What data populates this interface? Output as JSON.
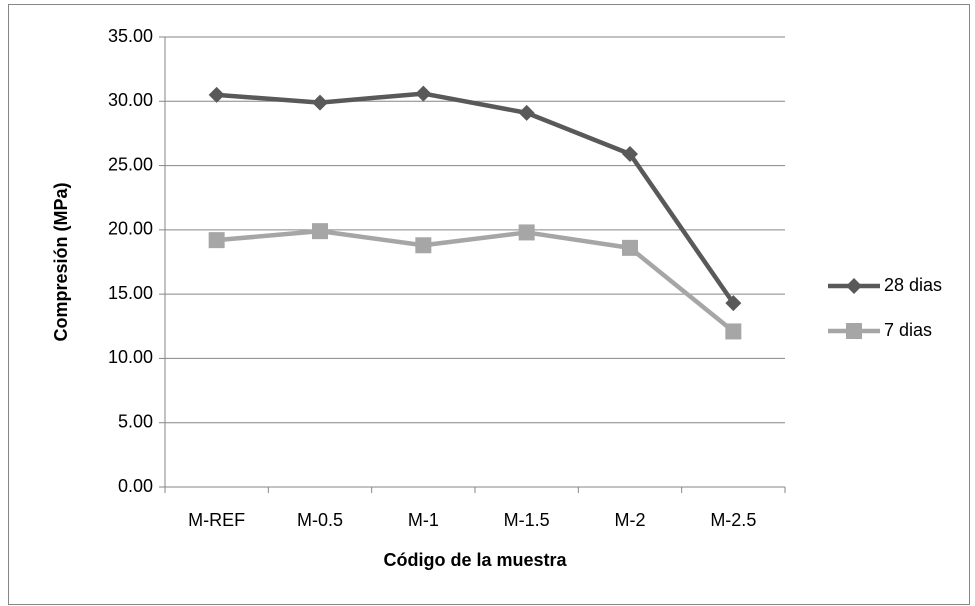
{
  "chart_data": {
    "type": "line",
    "x_label": "Código de la muestra",
    "y_label": "Compresión (MPa)",
    "categories": [
      "M-REF",
      "M-0.5",
      "M-1",
      "M-1.5",
      "M-2",
      "M-2.5"
    ],
    "series": [
      {
        "name": "28 dias",
        "color": "#595959",
        "marker": "diamond",
        "values": [
          30.5,
          29.9,
          30.6,
          29.1,
          25.9,
          14.3
        ]
      },
      {
        "name": "7 dias",
        "color": "#a6a6a6",
        "marker": "square",
        "values": [
          19.2,
          19.9,
          18.8,
          19.8,
          18.6,
          12.1
        ]
      }
    ],
    "ylim": [
      0,
      35
    ],
    "yticks": [
      {
        "value": 0,
        "label": "0.00"
      },
      {
        "value": 5,
        "label": "5.00"
      },
      {
        "value": 10,
        "label": "10.00"
      },
      {
        "value": 15,
        "label": "15.00"
      },
      {
        "value": 20,
        "label": "20.00"
      },
      {
        "value": 25,
        "label": "25.00"
      },
      {
        "value": 30,
        "label": "30.00"
      },
      {
        "value": 35,
        "label": "35.00"
      }
    ],
    "grid": true,
    "legend": "right"
  }
}
